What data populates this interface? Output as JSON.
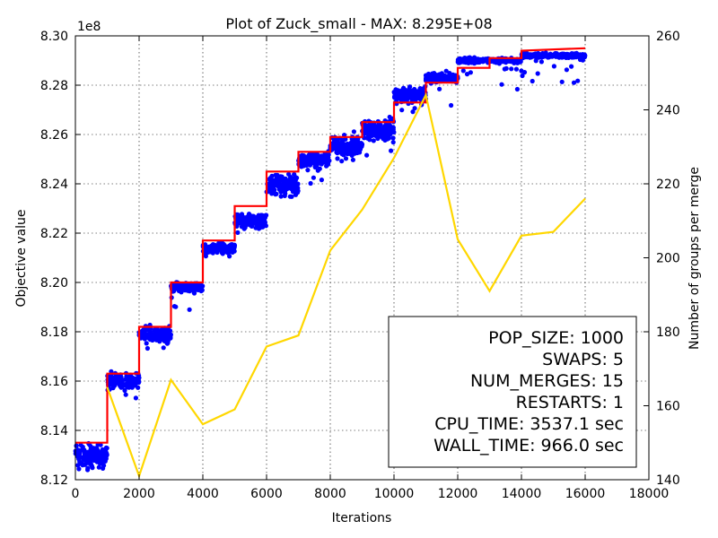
{
  "chart_data": {
    "type": "scatter",
    "title": "Plot of Zuck_small - MAX: 8.295E+08",
    "xlabel": "Iterations",
    "ylabel": "Objective value",
    "y2label": "Number of groups per merge",
    "y_exponent_label": "1e8",
    "xlim": [
      0,
      18000
    ],
    "ylim": [
      8.12,
      8.3
    ],
    "y2lim": [
      140,
      260
    ],
    "x_ticks": [
      0,
      2000,
      4000,
      6000,
      8000,
      10000,
      12000,
      14000,
      16000,
      18000
    ],
    "y_ticks": [
      8.12,
      8.14,
      8.16,
      8.18,
      8.2,
      8.22,
      8.24,
      8.26,
      8.28,
      8.3
    ],
    "y2_ticks": [
      140,
      160,
      180,
      200,
      220,
      240,
      260
    ],
    "x_tick_labels": [
      "0",
      "2000",
      "4000",
      "6000",
      "8000",
      "10000",
      "12000",
      "14000",
      "16000",
      "18000"
    ],
    "y_tick_labels": [
      "8.12",
      "8.14",
      "8.16",
      "8.18",
      "8.20",
      "8.22",
      "8.24",
      "8.26",
      "8.28",
      "8.30"
    ],
    "y2_tick_labels": [
      "140",
      "160",
      "180",
      "200",
      "220",
      "240",
      "260"
    ],
    "grid": true,
    "legend": "none",
    "colors": {
      "scatter": "#0000ff",
      "max_line": "#ff0000",
      "merge_line": "#ffd700"
    },
    "series": [
      {
        "kind": "step",
        "axis": "left",
        "x": [
          0,
          1000,
          1000,
          2000,
          2000,
          3000,
          3000,
          4000,
          4000,
          5000,
          5000,
          6000,
          6000,
          7000,
          7000,
          8000,
          8000,
          9000,
          9000,
          10000,
          10000,
          11000,
          11000,
          12000,
          12000,
          13000,
          13000,
          14000,
          14000,
          16000
        ],
        "y": [
          8.135,
          8.135,
          8.163,
          8.163,
          8.182,
          8.182,
          8.2,
          8.2,
          8.217,
          8.217,
          8.231,
          8.231,
          8.245,
          8.245,
          8.253,
          8.253,
          8.259,
          8.259,
          8.265,
          8.265,
          8.273,
          8.273,
          8.281,
          8.281,
          8.287,
          8.287,
          8.291,
          8.291,
          8.294,
          8.295
        ]
      },
      {
        "kind": "line",
        "axis": "right",
        "x": [
          1000,
          2000,
          3000,
          4000,
          5000,
          6000,
          7000,
          8000,
          9000,
          10000,
          11000,
          12000,
          13000,
          14000,
          15000,
          16000
        ],
        "y": [
          165,
          141,
          167,
          155,
          159,
          176,
          179,
          202,
          213,
          227,
          244,
          205,
          191,
          206,
          207,
          216
        ]
      },
      {
        "kind": "scatter",
        "axis": "left",
        "blocks": [
          {
            "x": [
              0,
              1000
            ],
            "center": 8.13,
            "spread": 0.004,
            "low": 8.122
          },
          {
            "x": [
              1000,
              2000
            ],
            "center": 8.16,
            "spread": 0.003,
            "low": 8.153
          },
          {
            "x": [
              2000,
              3000
            ],
            "center": 8.179,
            "spread": 0.003,
            "low": 8.173
          },
          {
            "x": [
              3000,
              4000
            ],
            "center": 8.198,
            "spread": 0.002,
            "low": 8.188
          },
          {
            "x": [
              4000,
              5000
            ],
            "center": 8.214,
            "spread": 0.002,
            "low": 8.21
          },
          {
            "x": [
              5000,
              6000
            ],
            "center": 8.225,
            "spread": 0.003,
            "low": 8.22
          },
          {
            "x": [
              6000,
              7000
            ],
            "center": 8.24,
            "spread": 0.004,
            "low": 8.234
          },
          {
            "x": [
              7000,
              8000
            ],
            "center": 8.25,
            "spread": 0.003,
            "low": 8.239
          },
          {
            "x": [
              8000,
              9000
            ],
            "center": 8.255,
            "spread": 0.004,
            "low": 8.24
          },
          {
            "x": [
              9000,
              10000
            ],
            "center": 8.262,
            "spread": 0.004,
            "low": 8.25
          },
          {
            "x": [
              10000,
              11000
            ],
            "center": 8.276,
            "spread": 0.003,
            "low": 8.268
          },
          {
            "x": [
              11000,
              12000
            ],
            "center": 8.283,
            "spread": 0.002,
            "low": 8.271
          },
          {
            "x": [
              12000,
              13000
            ],
            "center": 8.29,
            "spread": 0.001,
            "low": 8.283
          },
          {
            "x": [
              13000,
              14000
            ],
            "center": 8.29,
            "spread": 0.001,
            "low": 8.278
          },
          {
            "x": [
              14000,
              16000
            ],
            "center": 8.292,
            "spread": 0.0008,
            "low": 8.281
          }
        ]
      }
    ]
  },
  "stats_box": {
    "lines": [
      "POP_SIZE: 1000",
      "SWAPS: 5",
      "NUM_MERGES: 15",
      "RESTARTS: 1",
      "CPU_TIME: 3537.1 sec",
      "WALL_TIME: 966.0 sec"
    ]
  }
}
